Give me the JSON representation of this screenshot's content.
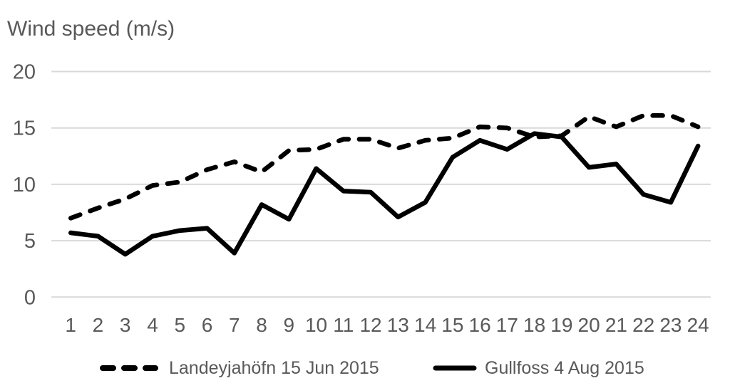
{
  "chart_data": {
    "type": "line",
    "title": "Wind speed (m/s)",
    "xlabel": "",
    "ylabel": "Wind speed (m/s)",
    "x": [
      1,
      2,
      3,
      4,
      5,
      6,
      7,
      8,
      9,
      10,
      11,
      12,
      13,
      14,
      15,
      16,
      17,
      18,
      19,
      20,
      21,
      22,
      23,
      24
    ],
    "y_ticks": [
      0,
      5,
      10,
      15,
      20
    ],
    "ylim": [
      0,
      20
    ],
    "grid": "horizontal",
    "legend_position": "bottom",
    "series": [
      {
        "name": "Landeyjahöfn 15 Jun 2015",
        "line_style": "dashed",
        "color": "#000000",
        "values": [
          7.0,
          7.9,
          8.7,
          9.9,
          10.2,
          11.3,
          12.0,
          11.1,
          13.0,
          13.1,
          14.0,
          14.0,
          13.2,
          13.9,
          14.1,
          15.1,
          15.0,
          14.2,
          14.3,
          16.0,
          15.1,
          16.1,
          16.1,
          15.1
        ]
      },
      {
        "name": "Gullfoss 4 Aug 2015",
        "line_style": "solid",
        "color": "#000000",
        "values": [
          5.7,
          5.4,
          3.8,
          5.4,
          5.9,
          6.1,
          3.9,
          8.2,
          6.9,
          11.4,
          9.4,
          9.3,
          7.1,
          8.4,
          12.4,
          13.9,
          13.1,
          14.5,
          14.2,
          11.5,
          11.8,
          9.1,
          8.4,
          13.4
        ]
      }
    ],
    "colors": {
      "text": "#595959",
      "gridline": "#D9D9D9",
      "line": "#000000"
    }
  }
}
